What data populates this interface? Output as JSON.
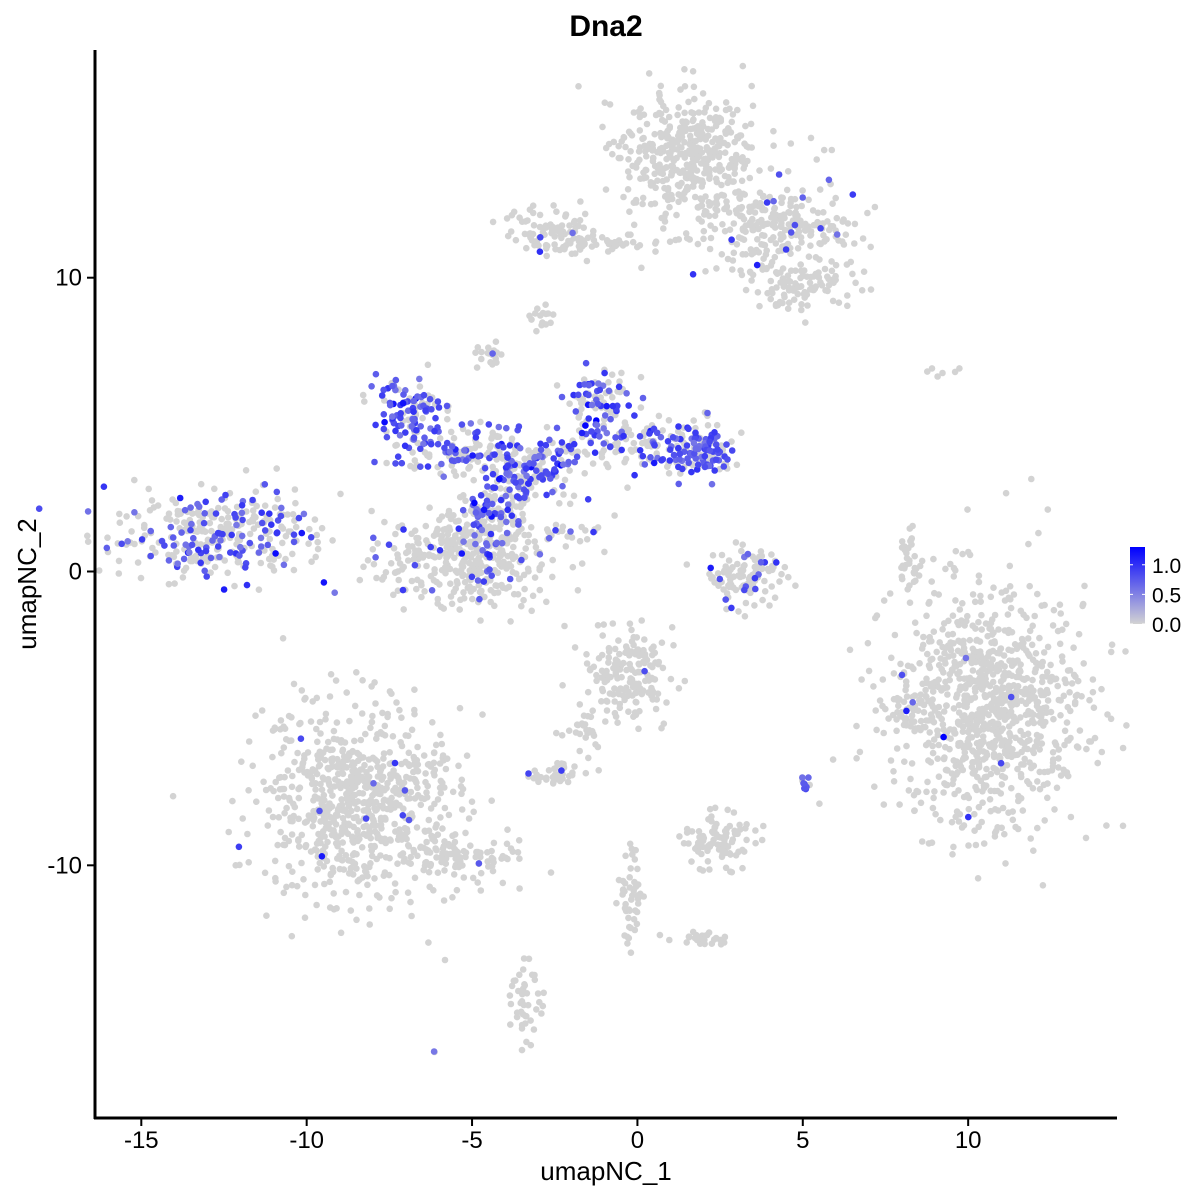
{
  "chart_data": {
    "type": "scatter",
    "title": "Dna2",
    "xlabel": "umapNC_1",
    "ylabel": "umapNC_2",
    "xlim": [
      -16.4,
      14.5
    ],
    "ylim": [
      -18.6,
      17.75
    ],
    "x_ticks": [
      -15,
      -10,
      -5,
      0,
      5,
      10
    ],
    "x_tick_labels": [
      "-15",
      "-10",
      "-5",
      "0",
      "5",
      "10"
    ],
    "y_ticks": [
      -10,
      0,
      10
    ],
    "y_tick_labels": [
      "-10",
      "0",
      "10"
    ],
    "grid": false,
    "legend": {
      "position": "right",
      "type": "colorbar",
      "range": [
        0,
        1.3
      ],
      "ticks": [
        0.0,
        0.5,
        1.0
      ],
      "tick_labels": [
        "0.0",
        "0.5",
        "1.0"
      ],
      "low_color": "#D3D3D3",
      "high_color": "#0000FF"
    },
    "clusters": [
      {
        "x": -12.75,
        "y": 1.2,
        "sx": 1.6,
        "sy": 0.75,
        "n": 320,
        "expressing_fraction": 0.3
      },
      {
        "x": -11.6,
        "y": 2.2,
        "sx": 0.3,
        "sy": 0.4,
        "n": 15,
        "expressing_fraction": 0.5
      },
      {
        "x": -8.4,
        "y": -7.9,
        "sx": 1.5,
        "sy": 1.6,
        "n": 750,
        "expressing_fraction": 0.012
      },
      {
        "x": -5.6,
        "y": -9.8,
        "sx": 1.1,
        "sy": 0.45,
        "n": 90,
        "expressing_fraction": 0.0
      },
      {
        "x": 1.6,
        "y": 14.2,
        "sx": 1.0,
        "sy": 1.1,
        "n": 420,
        "expressing_fraction": 0.0
      },
      {
        "x": 4.2,
        "y": 11.7,
        "sx": 1.2,
        "sy": 0.8,
        "n": 260,
        "expressing_fraction": 0.02
      },
      {
        "x": 5.0,
        "y": 9.7,
        "sx": 0.8,
        "sy": 0.4,
        "n": 90,
        "expressing_fraction": 0.0
      },
      {
        "x": -2.6,
        "y": 11.5,
        "sx": 0.6,
        "sy": 0.45,
        "n": 90,
        "expressing_fraction": 0.02
      },
      {
        "x": -0.9,
        "y": 11.2,
        "sx": 0.9,
        "sy": 0.15,
        "n": 40,
        "expressing_fraction": 0.0
      },
      {
        "x": -2.8,
        "y": 8.6,
        "sx": 0.2,
        "sy": 0.3,
        "n": 15,
        "expressing_fraction": 0.0
      },
      {
        "x": -4.5,
        "y": 7.4,
        "sx": 0.2,
        "sy": 0.25,
        "n": 20,
        "expressing_fraction": 0.05
      },
      {
        "x": -6.9,
        "y": 5.5,
        "sx": 0.5,
        "sy": 0.55,
        "n": 110,
        "expressing_fraction": 0.55
      },
      {
        "x": -5.3,
        "y": 4.1,
        "sx": 1.0,
        "sy": 0.4,
        "n": 130,
        "expressing_fraction": 0.5
      },
      {
        "x": -3.3,
        "y": 3.4,
        "sx": 0.7,
        "sy": 0.6,
        "n": 150,
        "expressing_fraction": 0.5
      },
      {
        "x": -1.2,
        "y": 5.7,
        "sx": 0.5,
        "sy": 0.6,
        "n": 90,
        "expressing_fraction": 0.55
      },
      {
        "x": -0.2,
        "y": 4.3,
        "sx": 1.2,
        "sy": 0.45,
        "n": 130,
        "expressing_fraction": 0.35
      },
      {
        "x": 1.9,
        "y": 4.1,
        "sx": 0.5,
        "sy": 0.45,
        "n": 120,
        "expressing_fraction": 0.55
      },
      {
        "x": -4.3,
        "y": 2.0,
        "sx": 0.4,
        "sy": 0.7,
        "n": 90,
        "expressing_fraction": 0.4
      },
      {
        "x": -5.1,
        "y": 0.5,
        "sx": 1.2,
        "sy": 0.85,
        "n": 380,
        "expressing_fraction": 0.08
      },
      {
        "x": -1.9,
        "y": 1.3,
        "sx": 0.9,
        "sy": 0.35,
        "n": 25,
        "expressing_fraction": 0.15
      },
      {
        "x": 3.3,
        "y": -0.2,
        "sx": 0.6,
        "sy": 0.5,
        "n": 110,
        "expressing_fraction": 0.15
      },
      {
        "x": 8.2,
        "y": 0.4,
        "sx": 0.15,
        "sy": 0.5,
        "n": 30,
        "expressing_fraction": 0.0
      },
      {
        "x": 10.6,
        "y": -4.5,
        "sx": 1.5,
        "sy": 2.0,
        "n": 950,
        "expressing_fraction": 0.006
      },
      {
        "x": 8.1,
        "y": -4.8,
        "sx": 0.25,
        "sy": 0.5,
        "n": 25,
        "expressing_fraction": 0.04
      },
      {
        "x": -0.3,
        "y": -3.6,
        "sx": 0.7,
        "sy": 0.7,
        "n": 170,
        "expressing_fraction": 0.01
      },
      {
        "x": -1.6,
        "y": -5.5,
        "sx": 0.4,
        "sy": 0.6,
        "n": 30,
        "expressing_fraction": 0.0
      },
      {
        "x": -2.5,
        "y": -6.9,
        "sx": 0.35,
        "sy": 0.2,
        "n": 40,
        "expressing_fraction": 0.05
      },
      {
        "x": 2.5,
        "y": -9.2,
        "sx": 0.6,
        "sy": 0.45,
        "n": 90,
        "expressing_fraction": 0.0
      },
      {
        "x": 5.1,
        "y": -7.2,
        "sx": 0.08,
        "sy": 0.2,
        "n": 10,
        "expressing_fraction": 0.6
      },
      {
        "x": -0.2,
        "y": -11.0,
        "sx": 0.2,
        "sy": 0.9,
        "n": 50,
        "expressing_fraction": 0.0
      },
      {
        "x": 1.8,
        "y": -12.5,
        "sx": 0.5,
        "sy": 0.2,
        "n": 25,
        "expressing_fraction": 0.0
      },
      {
        "x": -3.4,
        "y": -14.5,
        "sx": 0.25,
        "sy": 0.7,
        "n": 45,
        "expressing_fraction": 0.0
      },
      {
        "x": 9.3,
        "y": 6.8,
        "sx": 0.4,
        "sy": 0.1,
        "n": 6,
        "expressing_fraction": 0.0
      },
      {
        "x": -6.1,
        "y": -16.3,
        "sx": 0.05,
        "sy": 0.05,
        "n": 2,
        "expressing_fraction": 0.5
      }
    ]
  }
}
